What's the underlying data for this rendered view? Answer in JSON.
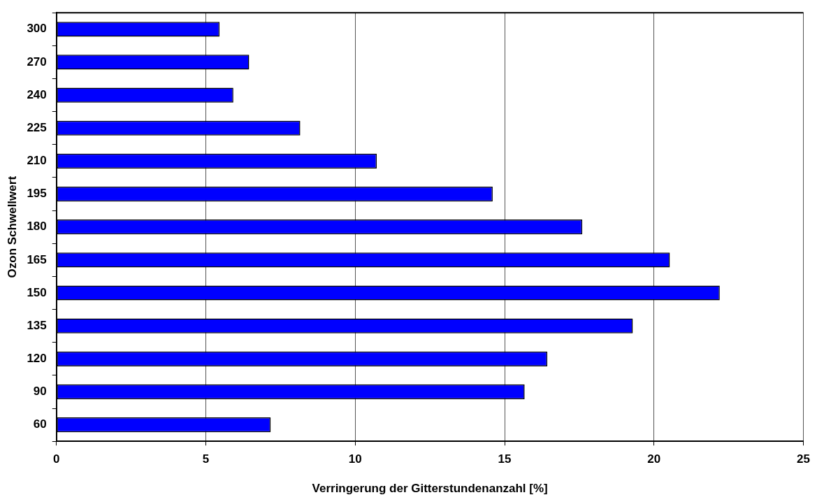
{
  "chart_data": {
    "type": "bar",
    "orientation": "horizontal",
    "xlabel": "Verringerung der Gitterstundenanzahl [%]",
    "ylabel": "Ozon Schwellwert",
    "categories": [
      "300",
      "270",
      "240",
      "225",
      "210",
      "195",
      "180",
      "165",
      "150",
      "135",
      "120",
      "90",
      "60"
    ],
    "values": [
      5.46,
      6.45,
      5.92,
      8.16,
      10.72,
      14.6,
      17.6,
      20.53,
      22.2,
      19.29,
      16.43,
      15.67,
      7.17
    ],
    "color": "#0000ff",
    "xlim": [
      0,
      25
    ],
    "xticks": [
      0,
      5,
      10,
      15,
      20,
      25
    ],
    "grid": "x"
  }
}
